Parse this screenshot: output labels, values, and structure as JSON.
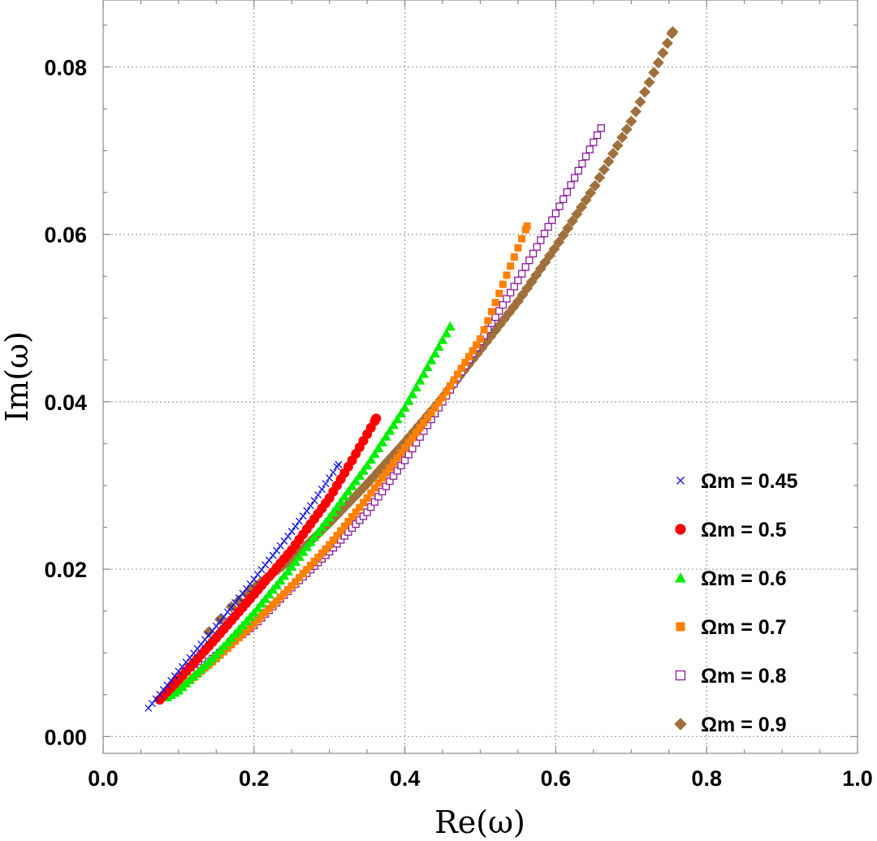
{
  "chart_data": {
    "type": "scatter",
    "title": "",
    "xlabel": "Re(ω)",
    "ylabel": "Im(ω)",
    "xlim": [
      0.0,
      1.0
    ],
    "ylim": [
      -0.002,
      0.088
    ],
    "x_ticks": [
      "0.0",
      "0.2",
      "0.4",
      "0.6",
      "0.8",
      "1.0"
    ],
    "x_tick_values": [
      0.0,
      0.2,
      0.4,
      0.6,
      0.8,
      1.0
    ],
    "y_ticks": [
      "0.00",
      "0.02",
      "0.04",
      "0.06",
      "0.08"
    ],
    "y_tick_values": [
      0.0,
      0.02,
      0.04,
      0.06,
      0.08
    ],
    "grid": true,
    "legend_position": "right",
    "series": [
      {
        "name": "Ωm = 0.45",
        "marker": "x",
        "color": "#1010e0",
        "x_range": [
          0.06,
          0.312
        ],
        "points": [
          [
            0.06,
            0.0034
          ],
          [
            0.1,
            0.0078
          ],
          [
            0.15,
            0.0132
          ],
          [
            0.2,
            0.0188
          ],
          [
            0.25,
            0.0245
          ],
          [
            0.28,
            0.0282
          ],
          [
            0.312,
            0.0325
          ]
        ]
      },
      {
        "name": "Ωm = 0.5",
        "marker": "circle",
        "color": "#ff0000",
        "x_range": [
          0.075,
          0.362
        ],
        "points": [
          [
            0.075,
            0.0044
          ],
          [
            0.1,
            0.0068
          ],
          [
            0.15,
            0.0118
          ],
          [
            0.2,
            0.017
          ],
          [
            0.25,
            0.0223
          ],
          [
            0.3,
            0.0285
          ],
          [
            0.33,
            0.033
          ],
          [
            0.362,
            0.038
          ]
        ]
      },
      {
        "name": "Ωm = 0.6",
        "marker": "triangle",
        "color": "#00ee00",
        "x_range": [
          0.085,
          0.46
        ],
        "points": [
          [
            0.085,
            0.0047
          ],
          [
            0.1,
            0.0055
          ],
          [
            0.15,
            0.0098
          ],
          [
            0.2,
            0.0148
          ],
          [
            0.25,
            0.0203
          ],
          [
            0.3,
            0.0262
          ],
          [
            0.35,
            0.0324
          ],
          [
            0.4,
            0.0393
          ],
          [
            0.46,
            0.049
          ]
        ]
      },
      {
        "name": "Ωm = 0.7",
        "marker": "square",
        "color": "#ff8000",
        "x_range": [
          0.1,
          0.562
        ],
        "points": [
          [
            0.1,
            0.0056
          ],
          [
            0.15,
            0.0093
          ],
          [
            0.2,
            0.0135
          ],
          [
            0.25,
            0.018
          ],
          [
            0.3,
            0.0229
          ],
          [
            0.35,
            0.0285
          ],
          [
            0.4,
            0.0345
          ],
          [
            0.45,
            0.0405
          ],
          [
            0.5,
            0.0475
          ],
          [
            0.562,
            0.061
          ]
        ]
      },
      {
        "name": "Ωm = 0.8",
        "marker": "open-square",
        "color": "#8b1a9b",
        "x_range": [
          0.12,
          0.66
        ],
        "points": [
          [
            0.12,
            0.0075
          ],
          [
            0.2,
            0.0133
          ],
          [
            0.25,
            0.0178
          ],
          [
            0.3,
            0.0221
          ],
          [
            0.35,
            0.0268
          ],
          [
            0.4,
            0.033
          ],
          [
            0.45,
            0.04
          ],
          [
            0.5,
            0.0472
          ],
          [
            0.55,
            0.0545
          ],
          [
            0.6,
            0.0625
          ],
          [
            0.66,
            0.0727
          ]
        ]
      },
      {
        "name": "Ωm = 0.9",
        "marker": "diamond",
        "color": "#a0703c",
        "x_range": [
          0.14,
          0.755
        ],
        "points": [
          [
            0.14,
            0.0125
          ],
          [
            0.17,
            0.0155
          ],
          [
            0.2,
            0.0178
          ],
          [
            0.25,
            0.0212
          ],
          [
            0.3,
            0.0255
          ],
          [
            0.35,
            0.0302
          ],
          [
            0.4,
            0.0352
          ],
          [
            0.45,
            0.0405
          ],
          [
            0.5,
            0.0462
          ],
          [
            0.55,
            0.052
          ],
          [
            0.6,
            0.0585
          ],
          [
            0.65,
            0.0655
          ],
          [
            0.7,
            0.0735
          ],
          [
            0.755,
            0.0842
          ]
        ]
      }
    ]
  }
}
